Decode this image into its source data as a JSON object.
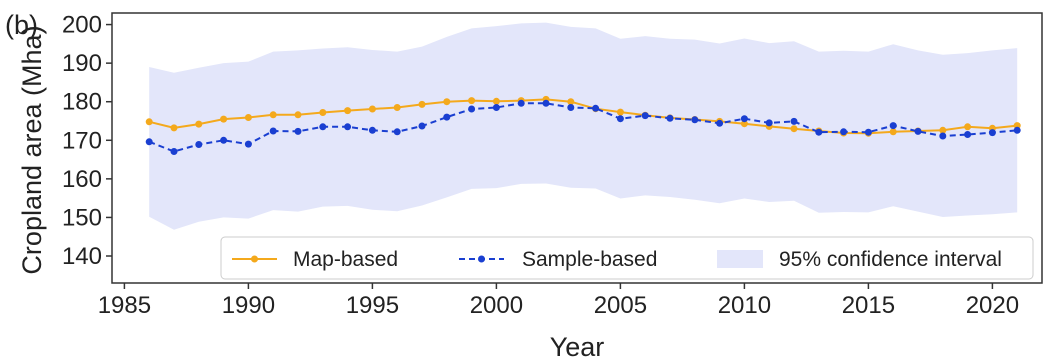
{
  "panel_label": "(b)",
  "colors": {
    "map": "#F4A91C",
    "sample": "#1A3FD1",
    "ci_fill": "#E3E6FA",
    "axis": "#333333"
  },
  "chart_data": {
    "type": "line",
    "xlabel": "Year",
    "ylabel": "Cropland area (Mha)",
    "xlim": [
      1984.5,
      2022.0
    ],
    "ylim": [
      133,
      203
    ],
    "xticks": [
      1985,
      1990,
      1995,
      2000,
      2005,
      2010,
      2015,
      2020
    ],
    "yticks": [
      140,
      150,
      160,
      170,
      180,
      190,
      200
    ],
    "grid": false,
    "legend_position": "lower center",
    "x": [
      1986,
      1987,
      1988,
      1989,
      1990,
      1991,
      1992,
      1993,
      1994,
      1995,
      1996,
      1997,
      1998,
      1999,
      2000,
      2001,
      2002,
      2003,
      2004,
      2005,
      2006,
      2007,
      2008,
      2009,
      2010,
      2011,
      2012,
      2013,
      2014,
      2015,
      2016,
      2017,
      2018,
      2019,
      2020,
      2021
    ],
    "series": [
      {
        "name": "Map-based",
        "style": "solid",
        "marker": "circle",
        "values": [
          174.8,
          173.2,
          174.2,
          175.5,
          175.9,
          176.6,
          176.6,
          177.2,
          177.7,
          178.1,
          178.5,
          179.3,
          180.0,
          180.3,
          180.1,
          180.3,
          180.6,
          180.0,
          178.2,
          177.3,
          176.5,
          175.8,
          175.4,
          174.9,
          174.3,
          173.6,
          173.0,
          172.4,
          171.9,
          171.8,
          172.2,
          172.4,
          172.6,
          173.5,
          173.1,
          173.8
        ]
      },
      {
        "name": "Sample-based",
        "style": "dashed",
        "marker": "circle",
        "values": [
          169.6,
          167.1,
          168.9,
          170.0,
          169.0,
          172.4,
          172.3,
          173.5,
          173.5,
          172.6,
          172.2,
          173.7,
          176.0,
          178.1,
          178.5,
          179.6,
          179.6,
          178.5,
          178.3,
          175.6,
          176.4,
          175.7,
          175.3,
          174.4,
          175.6,
          174.5,
          174.9,
          172.1,
          172.2,
          172.1,
          173.8,
          172.3,
          171.1,
          171.5,
          172.0,
          172.6
        ]
      }
    ],
    "confidence_interval": {
      "name": "95% confidence interval",
      "upper": [
        189.0,
        187.5,
        188.8,
        190.0,
        190.4,
        193.0,
        193.3,
        193.8,
        194.1,
        193.4,
        193.0,
        194.3,
        196.8,
        199.0,
        199.6,
        200.3,
        200.5,
        199.4,
        199.0,
        196.3,
        197.0,
        196.3,
        196.1,
        195.1,
        196.4,
        195.2,
        195.7,
        193.0,
        193.2,
        193.0,
        194.9,
        193.3,
        192.2,
        192.6,
        193.3,
        193.9
      ],
      "lower": [
        150.2,
        146.8,
        148.9,
        150.0,
        149.7,
        151.9,
        151.5,
        152.8,
        153.0,
        152.0,
        151.6,
        153.1,
        155.2,
        157.4,
        157.6,
        158.7,
        158.8,
        157.7,
        157.5,
        154.9,
        155.7,
        155.3,
        154.6,
        153.7,
        154.9,
        154.0,
        154.3,
        151.2,
        151.4,
        151.3,
        152.9,
        151.5,
        150.1,
        150.5,
        150.8,
        151.3
      ]
    }
  }
}
